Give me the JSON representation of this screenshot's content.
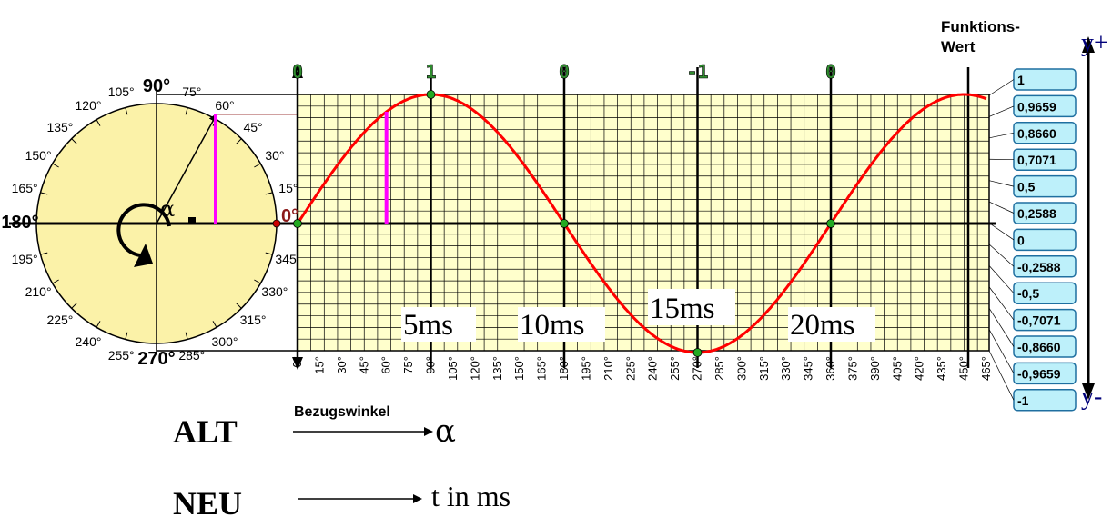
{
  "circle": {
    "labels": [
      {
        "a": 0,
        "t": "0°"
      },
      {
        "a": 15,
        "t": "15°"
      },
      {
        "a": 30,
        "t": "30°"
      },
      {
        "a": 45,
        "t": "45°"
      },
      {
        "a": 60,
        "t": "60°"
      },
      {
        "a": 75,
        "t": "75°"
      },
      {
        "a": 90,
        "t": "90°"
      },
      {
        "a": 105,
        "t": "105°"
      },
      {
        "a": 120,
        "t": "120°"
      },
      {
        "a": 135,
        "t": "135°"
      },
      {
        "a": 150,
        "t": "150°"
      },
      {
        "a": 165,
        "t": "165°"
      },
      {
        "a": 180,
        "t": "180°"
      },
      {
        "a": 195,
        "t": "195°"
      },
      {
        "a": 210,
        "t": "210°"
      },
      {
        "a": 225,
        "t": "225°"
      },
      {
        "a": 240,
        "t": "240°"
      },
      {
        "a": 255,
        "t": "255°"
      },
      {
        "a": 270,
        "t": "270°"
      },
      {
        "a": 285,
        "t": "285°"
      },
      {
        "a": 300,
        "t": "300°"
      },
      {
        "a": 315,
        "t": "315°"
      },
      {
        "a": 330,
        "t": "330°"
      },
      {
        "a": 345,
        "t": "345°"
      }
    ],
    "angle_symbol": "α",
    "example_angle": 60
  },
  "plot": {
    "top_values": [
      "0",
      "1",
      "0",
      "-1",
      "0"
    ],
    "x_ticks": [
      "0°",
      "15°",
      "30°",
      "45°",
      "60°",
      "75°",
      "90°",
      "105°",
      "120°",
      "135°",
      "150°",
      "165°",
      "180°",
      "195°",
      "210°",
      "225°",
      "240°",
      "255°",
      "270°",
      "285°",
      "300°",
      "315°",
      "330°",
      "345°",
      "360°",
      "375°",
      "390°",
      "405°",
      "420°",
      "435°",
      "450°",
      "465°"
    ],
    "x_axis_label": "Bezugswinkel",
    "ms_labels": [
      "5ms",
      "10ms",
      "15ms",
      "20ms"
    ]
  },
  "function_values": {
    "heading_line1": "Funktions-",
    "heading_line2": "Wert",
    "values": [
      "1",
      "0,9659",
      "0,8660",
      "0,7071",
      "0,5",
      "0,2588",
      "0",
      "-0,2588",
      "-0,5",
      "-0,7071",
      "-0,8660",
      "-0,9659",
      "-1"
    ],
    "y_plus": "y+",
    "y_minus": "y-"
  },
  "legend": {
    "alt_label": "ALT",
    "alt_symbol": "α",
    "neu_label": "NEU",
    "neu_text": "t in ms"
  },
  "colors": {
    "circle_fill": "#fbf2a8",
    "plot_fill": "#ffffcc",
    "sine": "#ff0000",
    "marker": "#ff00ff",
    "point": "#22aa22",
    "box_fill": "#bdf0fa",
    "box_border": "#1f6fa0"
  }
}
